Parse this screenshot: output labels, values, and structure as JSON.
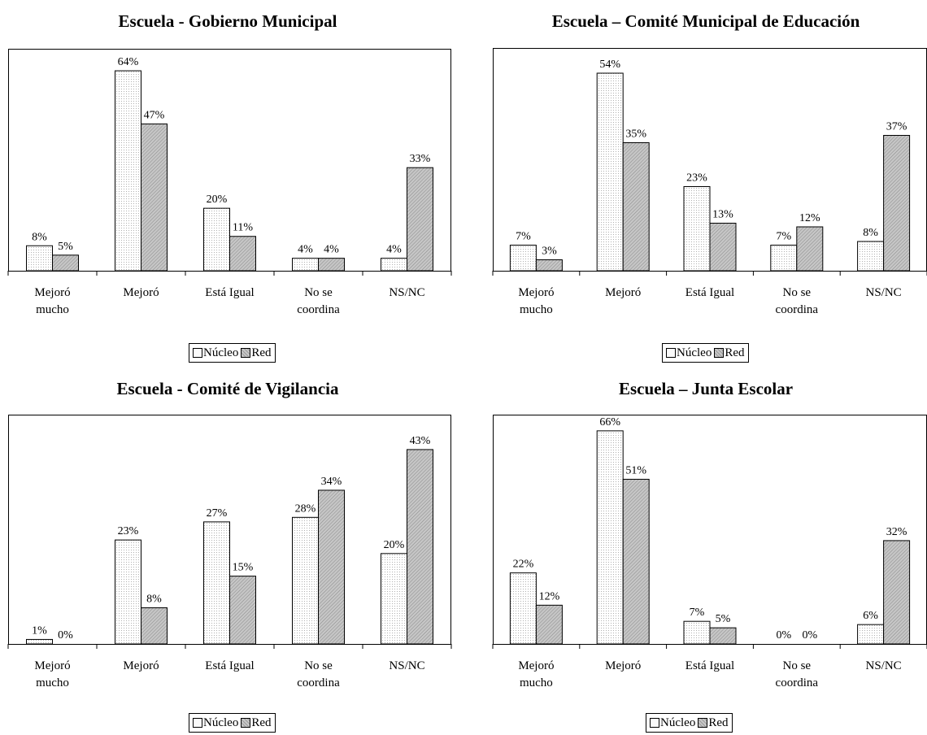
{
  "legend": {
    "series_1": "Núcleo",
    "series_2": "Red"
  },
  "chart_data": [
    {
      "type": "bar",
      "title": "Escuela - Gobierno Municipal",
      "categories": [
        [
          "Mejoró",
          "mucho"
        ],
        [
          "Mejoró"
        ],
        [
          "Está Igual"
        ],
        [
          "No se",
          "coordina"
        ],
        [
          "NS/NC"
        ]
      ],
      "series": [
        {
          "name": "Núcleo",
          "values": [
            8,
            64,
            20,
            4,
            4
          ]
        },
        {
          "name": "Red",
          "values": [
            5,
            47,
            11,
            4,
            33
          ]
        }
      ],
      "value_labels": [
        [
          "8%",
          "64%",
          "20%",
          "4%",
          "4%"
        ],
        [
          "5%",
          "47%",
          "11%",
          "4%",
          "33%"
        ]
      ],
      "ylim": [
        0,
        70
      ],
      "legend_position": "bottom"
    },
    {
      "type": "bar",
      "title": "Escuela – Comité Municipal de Educación",
      "categories": [
        [
          "Mejoró",
          "mucho"
        ],
        [
          "Mejoró"
        ],
        [
          "Está Igual"
        ],
        [
          "No se",
          "coordina"
        ],
        [
          "NS/NC"
        ]
      ],
      "series": [
        {
          "name": "Núcleo",
          "values": [
            7,
            54,
            23,
            7,
            8
          ]
        },
        {
          "name": "Red",
          "values": [
            3,
            35,
            13,
            12,
            37
          ]
        }
      ],
      "value_labels": [
        [
          "7%",
          "54%",
          "23%",
          "7%",
          "8%"
        ],
        [
          "3%",
          "35%",
          "13%",
          "12%",
          "37%"
        ]
      ],
      "ylim": [
        0,
        60
      ],
      "legend_position": "bottom"
    },
    {
      "type": "bar",
      "title": "Escuela - Comité de Vigilancia",
      "categories": [
        [
          "Mejoró",
          "mucho"
        ],
        [
          "Mejoró"
        ],
        [
          "Está Igual"
        ],
        [
          "No se",
          "coordina"
        ],
        [
          "NS/NC"
        ]
      ],
      "series": [
        {
          "name": "Núcleo",
          "values": [
            1,
            23,
            27,
            28,
            20
          ]
        },
        {
          "name": "Red",
          "values": [
            0,
            8,
            15,
            34,
            43
          ]
        }
      ],
      "value_labels": [
        [
          "1%",
          "23%",
          "27%",
          "28%",
          "20%"
        ],
        [
          "0%",
          "8%",
          "15%",
          "34%",
          "43%"
        ]
      ],
      "ylim": [
        0,
        50
      ],
      "legend_position": "bottom"
    },
    {
      "type": "bar",
      "title": "Escuela – Junta Escolar",
      "categories": [
        [
          "Mejoró",
          "mucho"
        ],
        [
          "Mejoró"
        ],
        [
          "Está Igual"
        ],
        [
          "No se",
          "coordina"
        ],
        [
          "NS/NC"
        ]
      ],
      "series": [
        {
          "name": "Núcleo",
          "values": [
            22,
            66,
            7,
            0,
            6
          ]
        },
        {
          "name": "Red",
          "values": [
            12,
            51,
            5,
            0,
            32
          ]
        }
      ],
      "value_labels": [
        [
          "22%",
          "66%",
          "7%",
          "0%",
          "6%"
        ],
        [
          "12%",
          "51%",
          "5%",
          "0%",
          "32%"
        ]
      ],
      "ylim": [
        0,
        70
      ],
      "legend_position": "bottom"
    }
  ]
}
